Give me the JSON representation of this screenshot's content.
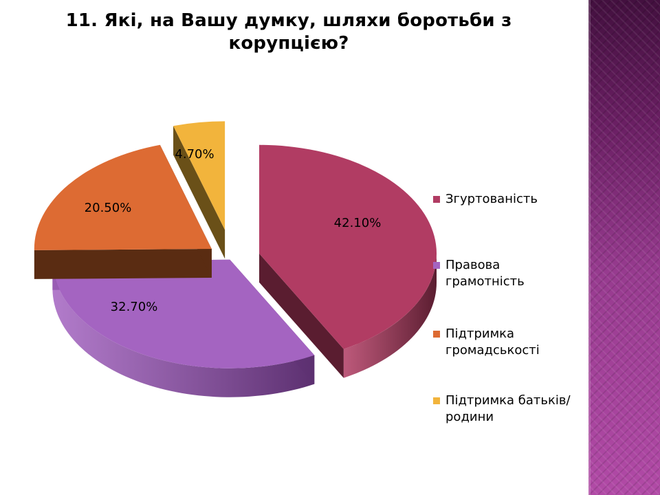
{
  "title": "11. Які, на Вашу думку, шляхи боротьби з корупцією?",
  "chart_data": {
    "type": "pie",
    "style": "3d-exploded",
    "legend_position": "right",
    "slices": [
      {
        "label": "Згуртованість",
        "value": 42.1,
        "value_label": "42.10%",
        "color": "#b13c63",
        "side_color": "#5a1d30"
      },
      {
        "label": "Правова грамотність",
        "value": 32.7,
        "value_label": "32.70%",
        "color": "#a464c1",
        "side_color": "#5c3070"
      },
      {
        "label": "Підтримка громадськості",
        "value": 20.5,
        "value_label": "20.50%",
        "color": "#dd6b33",
        "side_color": "#5a2c12"
      },
      {
        "label": "Підтримка батьків/родини",
        "value": 4.7,
        "value_label": "4.70%",
        "color": "#f2b43c",
        "side_color": "#6a5018"
      }
    ]
  }
}
